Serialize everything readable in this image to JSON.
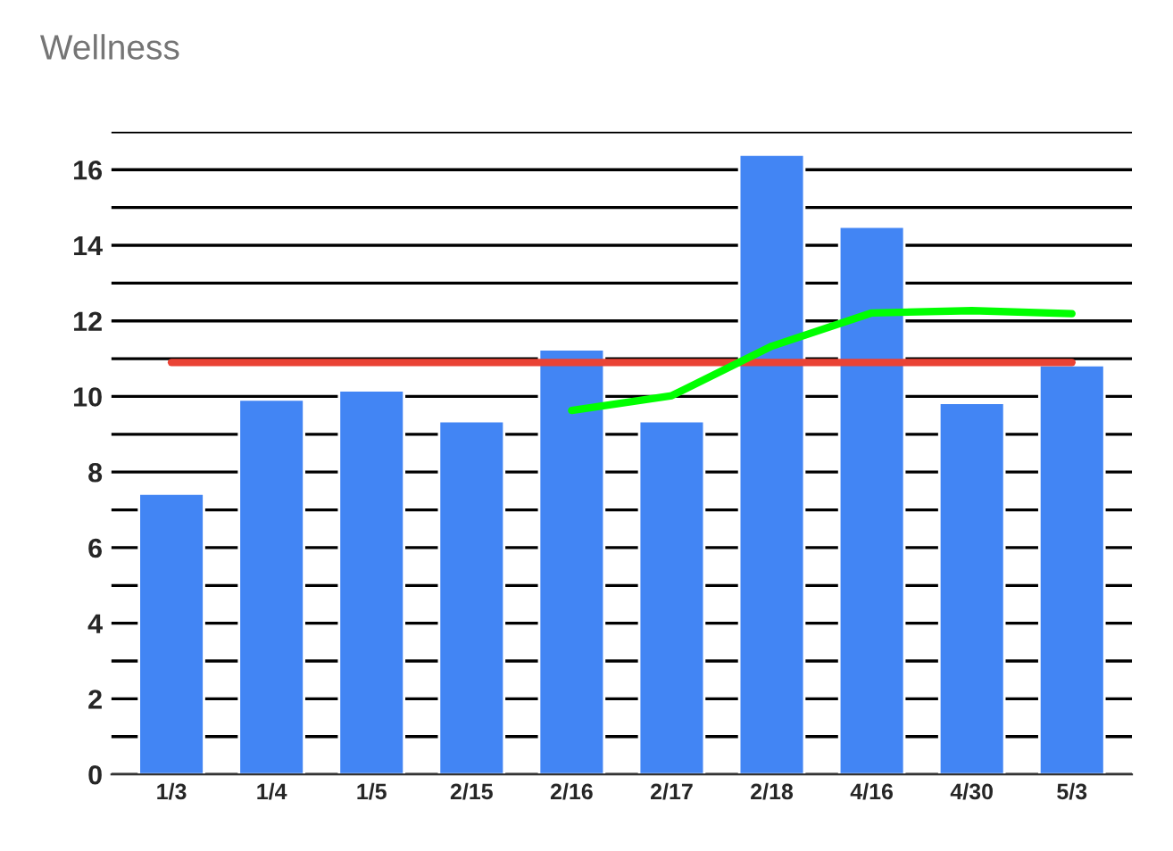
{
  "chart_data": {
    "type": "bar",
    "title": "Wellness",
    "categories": [
      "1/3",
      "1/4",
      "1/5",
      "2/15",
      "2/16",
      "2/17",
      "2/18",
      "4/16",
      "4/30",
      "5/3"
    ],
    "series": [
      {
        "color": "#4285f4",
        "values": [
          7.43,
          9.92,
          10.16,
          9.35,
          11.25,
          9.35,
          16.4,
          14.49,
          9.83,
          10.83
        ]
      },
      {
        "type": "line",
        "color": "#ea4335",
        "values": [
          10.9,
          10.9,
          10.9,
          10.9,
          10.9,
          10.9,
          10.9,
          10.9,
          10.9,
          10.9
        ]
      },
      {
        "type": "line",
        "color": "#00ff00",
        "values": [
          null,
          null,
          null,
          null,
          9.63,
          10.02,
          11.33,
          12.21,
          12.27,
          12.19
        ]
      }
    ],
    "ylim": [
      0,
      17
    ],
    "yticks": [
      0,
      {
        "value": 1,
        "label": null
      },
      2,
      {
        "value": 3,
        "label": null
      },
      4,
      {
        "value": 5,
        "label": null
      },
      6,
      {
        "value": 7,
        "label": null
      },
      8,
      {
        "value": 9,
        "label": null
      },
      10,
      {
        "value": 11,
        "label": null
      },
      12,
      {
        "value": 13,
        "label": null
      },
      14,
      {
        "value": 15,
        "label": null
      },
      16,
      {
        "value": 17,
        "label": null
      }
    ],
    "grid": "y",
    "legend": false,
    "marker": "none",
    "line_style": "solid"
  }
}
